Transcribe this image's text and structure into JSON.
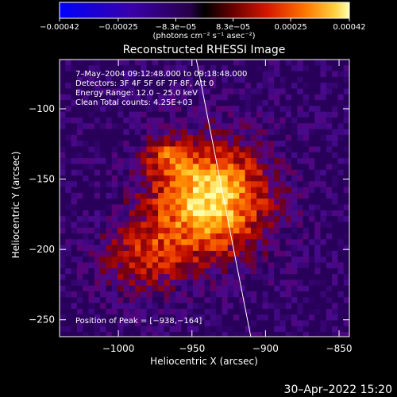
{
  "chart_data": {
    "type": "heatmap",
    "title": "Reconstructed RHESSI Image",
    "xlabel": "Heliocentric X (arcsec)",
    "ylabel": "Heliocentric Y (arcsec)",
    "xlim": [
      -1040,
      -843
    ],
    "ylim": [
      -262,
      -65
    ],
    "x_ticks": [
      -1000,
      -950,
      -900,
      -850
    ],
    "y_ticks": [
      -250,
      -200,
      -150,
      -100
    ],
    "x_tick_labels": [
      "−1000",
      "−950",
      "−900",
      "−850"
    ],
    "y_tick_labels": [
      "−250",
      "−200",
      "−150",
      "−100"
    ],
    "colorbar": {
      "min": -0.00042,
      "max": 0.00042,
      "ticks": [
        -0.00042,
        -0.00025,
        -8.3e-05,
        8.3e-05,
        0.00025,
        0.00042
      ],
      "tick_labels": [
        "−0.00042",
        "−0.00025",
        "−8.3e−05",
        "8.3e−05",
        "0.00025",
        "0.00042"
      ],
      "unit_label": "(photons cm⁻² s⁻¹ asec⁻²)"
    },
    "peak": {
      "x": -938,
      "y": -164
    },
    "limb_line": [
      {
        "x": -947,
        "y": -65
      },
      {
        "x": -910,
        "y": -262
      }
    ],
    "annotations": {
      "time_range": "7–May–2004 09:12:48.000  to 09:18:48.000",
      "detectors": "Detectors: 3F 4F 5F 6F 7F 8F, Att 0",
      "energy": "Energy Range: 12.0 – 25.0 keV",
      "clean": "Clean     Total counts: 4.25E+03",
      "peak_text": "Position of Peak = [−938,−164]"
    }
  },
  "footer": {
    "timestamp": "30–Apr–2022 15:20"
  }
}
